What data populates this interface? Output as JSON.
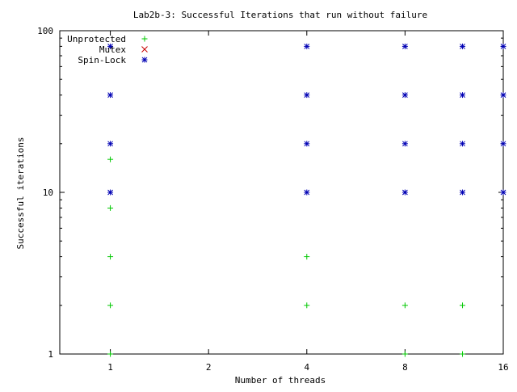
{
  "chart_data": {
    "type": "scatter",
    "title": "Lab2b-3: Successful Iterations that run without failure",
    "xlabel": "Number of threads",
    "ylabel": "Successful iterations",
    "x_scale": "log2",
    "y_scale": "log10",
    "xlim": [
      0.7,
      16
    ],
    "ylim": [
      1,
      100
    ],
    "x_ticks": [
      {
        "value": 1,
        "label": "1"
      },
      {
        "value": 2,
        "label": "2"
      },
      {
        "value": 4,
        "label": "4"
      },
      {
        "value": 8,
        "label": "8"
      },
      {
        "value": 16,
        "label": "16"
      }
    ],
    "y_ticks": [
      {
        "value": 1,
        "label": "1"
      },
      {
        "value": 10,
        "label": "10"
      },
      {
        "value": 100,
        "label": "100"
      }
    ],
    "grid": false,
    "legend_position": "top-left",
    "series": [
      {
        "name": "Unprotected",
        "marker": "plus",
        "color": "#00c800",
        "points": [
          [
            1,
            1
          ],
          [
            1,
            2
          ],
          [
            1,
            4
          ],
          [
            1,
            8
          ],
          [
            1,
            16
          ],
          [
            4,
            2
          ],
          [
            4,
            4
          ],
          [
            8,
            1
          ],
          [
            8,
            2
          ],
          [
            12,
            1
          ],
          [
            12,
            2
          ]
        ]
      },
      {
        "name": "Mutex",
        "marker": "cross",
        "color": "#c80000",
        "points": []
      },
      {
        "name": "Spin-Lock",
        "marker": "star",
        "color": "#0000b4",
        "points": [
          [
            1,
            10
          ],
          [
            1,
            20
          ],
          [
            1,
            40
          ],
          [
            1,
            80
          ],
          [
            4,
            10
          ],
          [
            4,
            20
          ],
          [
            4,
            40
          ],
          [
            4,
            80
          ],
          [
            8,
            10
          ],
          [
            8,
            20
          ],
          [
            8,
            40
          ],
          [
            8,
            80
          ],
          [
            12,
            10
          ],
          [
            12,
            20
          ],
          [
            12,
            40
          ],
          [
            12,
            80
          ],
          [
            16,
            10
          ],
          [
            16,
            20
          ],
          [
            16,
            40
          ],
          [
            16,
            80
          ]
        ]
      }
    ]
  }
}
